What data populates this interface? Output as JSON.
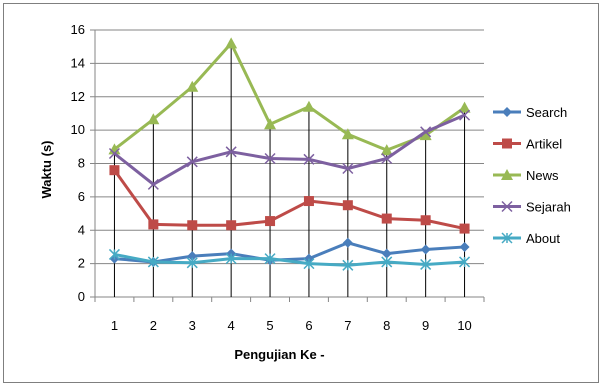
{
  "chart_data": {
    "type": "line",
    "title": "",
    "xlabel": "Pengujian Ke -",
    "ylabel": "Waktu (s)",
    "categories": [
      "1",
      "2",
      "3",
      "4",
      "5",
      "6",
      "7",
      "8",
      "9",
      "10"
    ],
    "ylim": [
      0,
      16
    ],
    "yticks": [
      0,
      2,
      4,
      6,
      8,
      10,
      12,
      14,
      16
    ],
    "grid": "horizontal",
    "legend_position": "right",
    "series": [
      {
        "name": "Search",
        "color": "#4a7ebb",
        "marker": "diamond",
        "values": [
          2.3,
          2.1,
          2.45,
          2.6,
          2.2,
          2.3,
          3.25,
          2.6,
          2.85,
          3.0
        ]
      },
      {
        "name": "Artikel",
        "color": "#be4b48",
        "marker": "square",
        "values": [
          7.6,
          4.35,
          4.3,
          4.3,
          4.55,
          5.75,
          5.5,
          4.7,
          4.6,
          4.1
        ]
      },
      {
        "name": "News",
        "color": "#98b954",
        "marker": "triangle",
        "values": [
          8.85,
          10.65,
          12.6,
          15.2,
          10.35,
          11.4,
          9.75,
          8.8,
          9.7,
          11.35
        ]
      },
      {
        "name": "Sejarah",
        "color": "#7d60a0",
        "marker": "x",
        "values": [
          8.6,
          6.75,
          8.1,
          8.7,
          8.3,
          8.25,
          7.7,
          8.3,
          9.9,
          10.9
        ]
      },
      {
        "name": "About",
        "color": "#46aac4",
        "marker": "star",
        "values": [
          2.55,
          2.1,
          2.05,
          2.3,
          2.3,
          2.0,
          1.9,
          2.1,
          1.95,
          2.1
        ]
      }
    ],
    "drop_lines": true
  }
}
